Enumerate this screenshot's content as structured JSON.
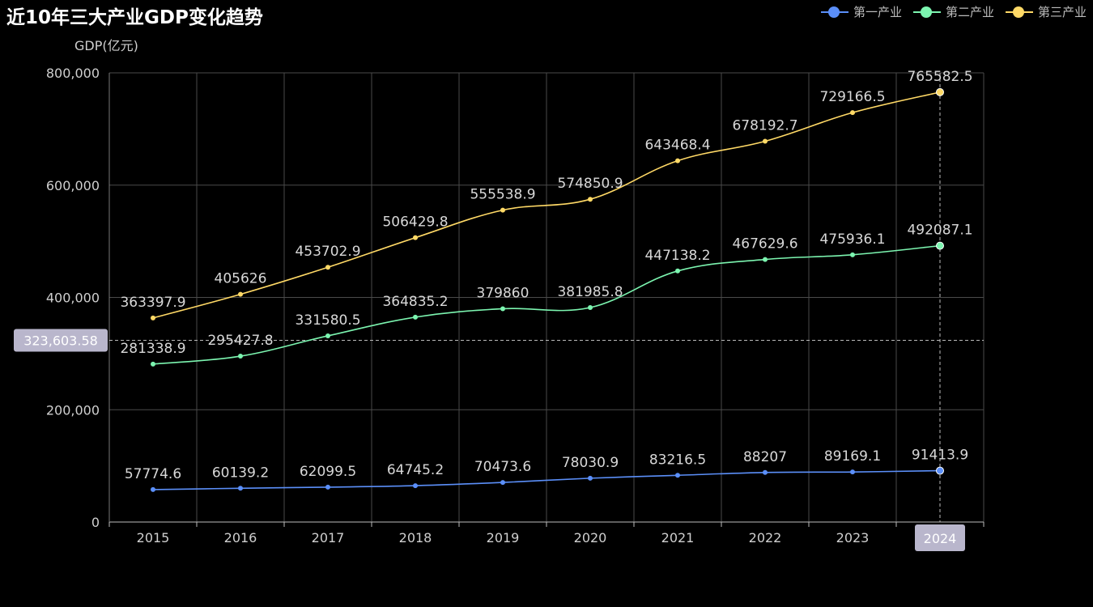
{
  "chart_data": {
    "type": "line",
    "title": "近10年三大产业GDP变化趋势",
    "ylabel": "GDP(亿元)",
    "xlabel": "",
    "categories": [
      "2015",
      "2016",
      "2017",
      "2018",
      "2019",
      "2020",
      "2021",
      "2022",
      "2023",
      "2024"
    ],
    "ylim": [
      0,
      800000
    ],
    "yticks": [
      0,
      200000,
      400000,
      600000,
      800000
    ],
    "ytick_labels": [
      "0",
      "200,000",
      "400,000",
      "600,000",
      "800,000"
    ],
    "grid": true,
    "smooth": true,
    "legend_position": "top-right",
    "series": [
      {
        "name": "第一产业",
        "color": "#5b8ff9",
        "values": [
          57774.6,
          60139.2,
          62099.5,
          64745.2,
          70473.6,
          78030.9,
          83216.5,
          88207,
          89169.1,
          91413.9
        ],
        "labels": [
          "57774.6",
          "60139.2",
          "62099.5",
          "64745.2",
          "70473.6",
          "78030.9",
          "83216.5",
          "88207",
          "89169.1",
          "91413.9"
        ]
      },
      {
        "name": "第二产业",
        "color": "#7cf5b0",
        "values": [
          281338.9,
          295427.8,
          331580.5,
          364835.2,
          379860,
          381985.8,
          447138.2,
          467629.6,
          475936.1,
          492087.1
        ],
        "labels": [
          "281338.9",
          "295427.8",
          "331580.5",
          "364835.2",
          "379860",
          "381985.8",
          "447138.2",
          "467629.6",
          "475936.1",
          "492087.1"
        ]
      },
      {
        "name": "第三产业",
        "color": "#ffd966",
        "values": [
          363397.9,
          405626,
          453702.9,
          506429.8,
          555538.9,
          574850.9,
          643468.4,
          678192.7,
          729166.5,
          765582.5
        ],
        "labels": [
          "363397.9",
          "405626",
          "453702.9",
          "506429.8",
          "555538.9",
          "574850.9",
          "643468.4",
          "678192.7",
          "729166.5",
          "765582.5"
        ]
      }
    ],
    "crosshair": {
      "y_value": 323603.58,
      "y_label": "323,603.58",
      "x_category": "2024",
      "x_label": "2024"
    }
  }
}
